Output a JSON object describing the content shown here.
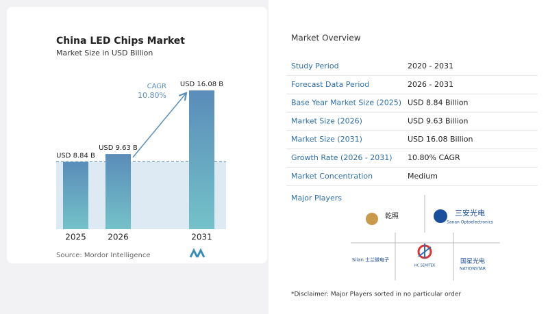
{
  "chart_data": {
    "type": "bar",
    "title": "China LED Chips Market",
    "subtitle": "Market Size in USD Billion",
    "categories": [
      "2025",
      "2026",
      "2031"
    ],
    "values": [
      8.84,
      9.63,
      16.08
    ],
    "value_labels": [
      "USD 8.84 B",
      "USD 9.63 B",
      "USD 16.08 B"
    ],
    "ylim": [
      2,
      17
    ],
    "color": "#5b8fba",
    "annotation": {
      "label": "CAGR",
      "value": "10.80%"
    },
    "source": "Source: Mordor Intelligence"
  },
  "overview": {
    "title": "Market Overview",
    "rows": [
      [
        "Study Period",
        "2020 - 2031"
      ],
      [
        "Forecast Data Period",
        "2026 - 2031"
      ],
      [
        "Base Year Market Size (2025)",
        "USD 8.84 Billion"
      ],
      [
        "Market Size (2026)",
        "USD 9.63 Billion"
      ],
      [
        "Market Size (2031)",
        "USD 16.08 Billion"
      ],
      [
        "Growth Rate (2026 - 2031)",
        "10.80% CAGR"
      ],
      [
        "Market Concentration",
        "Medium"
      ]
    ],
    "players_title": "Major Players",
    "players": [
      "乾照",
      "三安光电",
      "Sanan Optoelectronics",
      "Silan 士兰微电子",
      "HC SEMITEK",
      "国星光电",
      "NATIONSTAR"
    ],
    "disclaimer": "*Disclaimer: Major Players sorted in no particular order"
  }
}
